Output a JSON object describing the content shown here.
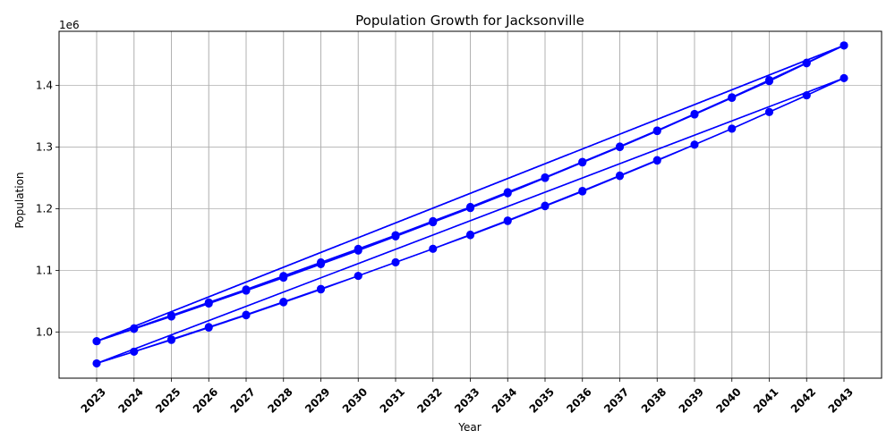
{
  "chart_data": {
    "type": "line",
    "title": "Population Growth for Jacksonville",
    "xlabel": "Year",
    "ylabel": "Population",
    "y_offset_label": "1e6",
    "categories": [
      "2023",
      "2024",
      "2025",
      "2026",
      "2027",
      "2028",
      "2029",
      "2030",
      "2031",
      "2032",
      "2033",
      "2034",
      "2035",
      "2036",
      "2037",
      "2038",
      "2039",
      "2040",
      "2041",
      "2042",
      "2043"
    ],
    "y_ticks": [
      1.0,
      1.1,
      1.2,
      1.3,
      1.4
    ],
    "y_tick_labels": [
      "1.0",
      "1.1",
      "1.2",
      "1.3",
      "1.4"
    ],
    "ylim": [
      0.925,
      1.488
    ],
    "grid": true,
    "series_color": "#0000ff",
    "series": [
      {
        "values": [
          0.985,
          1.005,
          1.025,
          1.046,
          1.067,
          1.088,
          1.11,
          1.132,
          1.155,
          1.178,
          1.201,
          1.225,
          1.25,
          1.275,
          1.3,
          1.326,
          1.353,
          1.38,
          1.407,
          1.436,
          1.465
        ]
      },
      {
        "values": [
          0.985,
          1.005,
          1.026,
          1.047,
          1.068,
          1.09,
          1.112,
          1.134,
          1.157,
          1.18,
          1.203,
          1.227,
          1.251,
          1.276,
          1.301,
          1.327,
          1.354,
          1.381,
          1.409,
          1.437,
          1.465
        ]
      },
      {
        "values": [
          0.985,
          1.006,
          1.027,
          1.048,
          1.069,
          1.091,
          1.113,
          1.135,
          1.157,
          1.179,
          1.202,
          1.226,
          1.25,
          1.276,
          1.301,
          1.327,
          1.353,
          1.38,
          1.408,
          1.437,
          1.465
        ]
      },
      {
        "values": [
          0.949,
          0.968,
          0.987,
          1.007,
          1.027,
          1.048,
          1.069,
          1.091,
          1.113,
          1.135,
          1.157,
          1.18,
          1.204,
          1.228,
          1.253,
          1.278,
          1.304,
          1.33,
          1.357,
          1.384,
          1.412
        ]
      },
      {
        "values": [
          0.949,
          0.968,
          0.988,
          1.008,
          1.028,
          1.049,
          1.07,
          1.091,
          1.113,
          1.135,
          1.158,
          1.181,
          1.205,
          1.229,
          1.254,
          1.279,
          1.304,
          1.33,
          1.357,
          1.384,
          1.412
        ]
      }
    ]
  }
}
